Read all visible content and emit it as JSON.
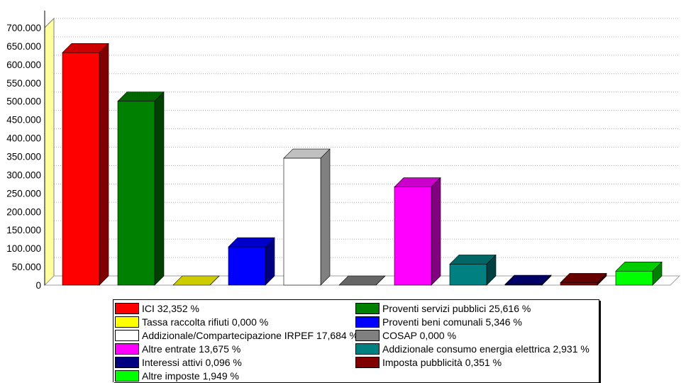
{
  "chart_data": {
    "type": "bar",
    "ylim": [
      0,
      700000
    ],
    "y_ticks": [
      "700.000",
      "650.000",
      "600.000",
      "550.000",
      "500.000",
      "450.000",
      "400.000",
      "350.000",
      "300.000",
      "250.000",
      "200.000",
      "150.000",
      "100.000",
      "50.000",
      "0"
    ],
    "y_tick_values": [
      700000,
      650000,
      600000,
      550000,
      500000,
      450000,
      400000,
      350000,
      300000,
      250000,
      200000,
      150000,
      100000,
      50000,
      0
    ],
    "grid": true,
    "legend_position": "bottom",
    "series": [
      {
        "name": "ICI 32,352 %",
        "value": 632000,
        "color": "#ff0000"
      },
      {
        "name": "Proventi servizi pubblici 25,616 %",
        "value": 500000,
        "color": "#008000"
      },
      {
        "name": "Tassa raccolta rifiuti 0,000 %",
        "value": 0,
        "color": "#ffff00"
      },
      {
        "name": "Proventi beni comunali 5,346 %",
        "value": 104000,
        "color": "#0000ff"
      },
      {
        "name": "Addizionale/Compartecipazione IRPEF 17,684 %",
        "value": 345000,
        "color": "#ffffff"
      },
      {
        "name": "COSAP 0,000 %",
        "value": 0,
        "color": "#808080"
      },
      {
        "name": "Altre entrate 13,675 %",
        "value": 267000,
        "color": "#ff00ff"
      },
      {
        "name": "Addizionale consumo energia elettrica 2,931 %",
        "value": 57000,
        "color": "#008080"
      },
      {
        "name": "Interessi attivi 0,096 %",
        "value": 1900,
        "color": "#000080"
      },
      {
        "name": "Imposta pubblicità 0,351 %",
        "value": 6900,
        "color": "#800000"
      },
      {
        "name": "Altre imposte 1,949 %",
        "value": 38000,
        "color": "#00ff00"
      }
    ]
  }
}
